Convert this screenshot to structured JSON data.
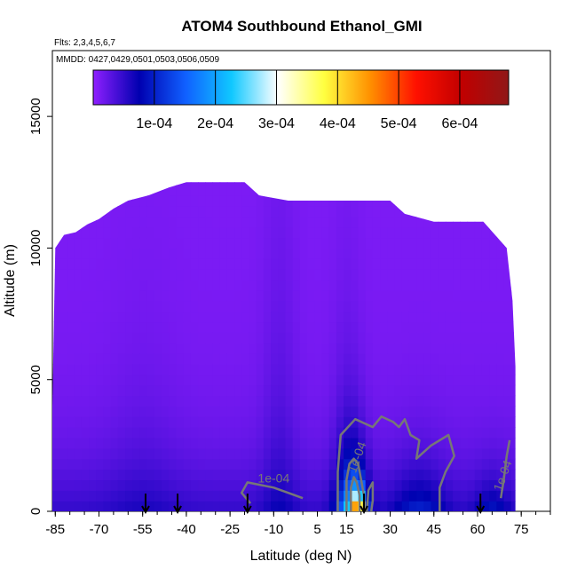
{
  "chart_data": {
    "type": "heatmap",
    "title": "ATOM4 Southbound Ethanol_GMI",
    "subtitle_flights": "Flts: 2,3,4,5,6,7",
    "subtitle_dates": "MMDD: 0427,0429,0501,0503,0506,0509",
    "xlabel": "Latitude (deg N)",
    "ylabel": "Altitude (m)",
    "xlim": [
      -86,
      85
    ],
    "ylim": [
      0,
      17500
    ],
    "x_ticks": [
      -85,
      -70,
      -55,
      -40,
      -25,
      -10,
      5,
      15,
      30,
      45,
      60,
      75
    ],
    "x_tick_labels": [
      "-85",
      "-70",
      "-55",
      "-40",
      "-25",
      "-10",
      "5",
      "15",
      "30",
      "45",
      "60",
      "75"
    ],
    "y_ticks": [
      0,
      5000,
      10000,
      15000
    ],
    "y_tick_labels": [
      "0",
      "5000",
      "10000",
      "15000"
    ],
    "colorbar": {
      "min": 0,
      "max": 0.00068,
      "tick_values": [
        0.0001,
        0.0002,
        0.0003,
        0.0004,
        0.0005,
        0.0006
      ],
      "tick_labels": [
        "1e-04",
        "2e-04",
        "3e-04",
        "4e-04",
        "5e-04",
        "6e-04"
      ],
      "colors": [
        "#8f1fff",
        "#0000b0",
        "#1060ff",
        "#10c8ff",
        "#ffffff",
        "#ffff40",
        "#ff9000",
        "#ff1000",
        "#c00000",
        "#901818"
      ]
    },
    "top_profile": [
      [
        -86,
        4000
      ],
      [
        -85,
        10000
      ],
      [
        -82,
        10500
      ],
      [
        -78,
        10600
      ],
      [
        -74,
        10900
      ],
      [
        -70,
        11100
      ],
      [
        -65,
        11500
      ],
      [
        -60,
        11800
      ],
      [
        -53,
        12000
      ],
      [
        -46,
        12300
      ],
      [
        -40,
        12500
      ],
      [
        -30,
        12500
      ],
      [
        -20,
        12500
      ],
      [
        -15,
        12000
      ],
      [
        -5,
        11800
      ],
      [
        5,
        11800
      ],
      [
        20,
        11800
      ],
      [
        30,
        11800
      ],
      [
        35,
        11300
      ],
      [
        45,
        11000
      ],
      [
        55,
        11000
      ],
      [
        62,
        11000
      ],
      [
        70,
        10000
      ],
      [
        72,
        8000
      ],
      [
        73,
        5500
      ],
      [
        73,
        0
      ]
    ],
    "contours": [
      {
        "level": "1e-04",
        "label": "1e-04",
        "label_at": [
          -10,
          1100
        ]
      },
      {
        "level": "1e-04",
        "label": "1e-04",
        "label_at": [
          20,
          2000
        ]
      },
      {
        "level": "1e-04",
        "label": "1e-04",
        "label_at": [
          70,
          1300
        ]
      }
    ],
    "flight_markers_lat": [
      -54,
      -43,
      -19,
      21,
      61
    ],
    "grid": false,
    "legend": "top colorbar"
  }
}
